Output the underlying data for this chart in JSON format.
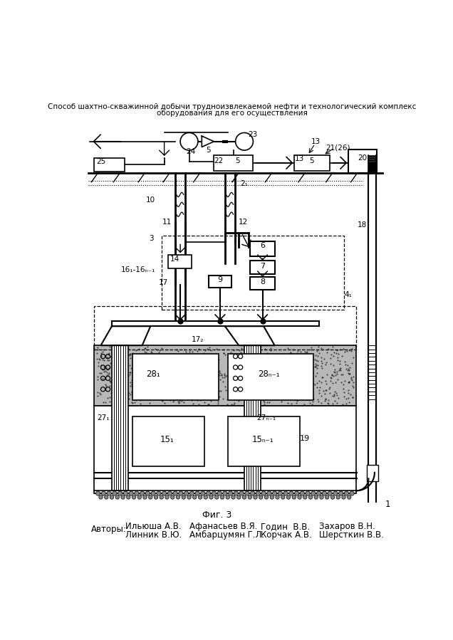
{
  "title_line1": "Способ шахтно-скважинной добычи трудноизвлекаемой нефти и технологический комплекс",
  "title_line2": "оборудования для его осуществления",
  "fig_label": "Фиг. 3",
  "authors_label": "Авторы:",
  "authors": [
    [
      "Ильюша А.В.",
      "Афанасьев В.Я.",
      "Годин  В.В.",
      "Захаров В.Н."
    ],
    [
      "Линник В.Ю.",
      "Амбарцумян Г.Л.",
      "Корчак А.В.",
      "Шерсткин В.В."
    ]
  ],
  "bg_color": "#ffffff",
  "text_color": "#000000"
}
